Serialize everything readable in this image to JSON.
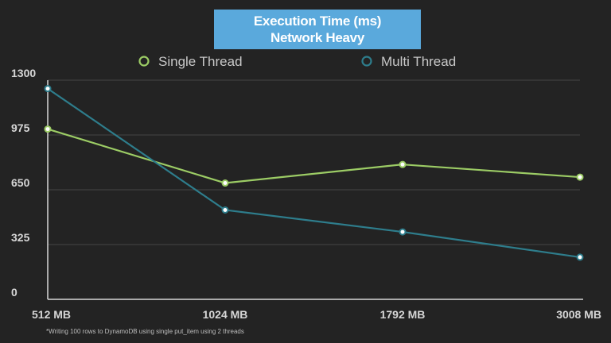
{
  "colors": {
    "background": "#232323",
    "title_bg": "#5aa9dc",
    "single_thread": "#9ccc65",
    "multi_thread": "#2e7d8c",
    "grid": "#444444"
  },
  "footnote": "*Writing 100 rows to DynamoDB using single put_item using 2 threads",
  "chart_data": {
    "type": "line",
    "title_lines": [
      "Execution Time (ms)",
      "Network Heavy"
    ],
    "categories": [
      "512 MB",
      "1024 MB",
      "1792 MB",
      "3008 MB"
    ],
    "series": [
      {
        "name": "Single Thread",
        "values": [
          1010,
          690,
          800,
          725
        ]
      },
      {
        "name": "Multi Thread",
        "values": [
          1250,
          530,
          400,
          250
        ]
      }
    ],
    "yticks": [
      0,
      325,
      650,
      975,
      1300
    ],
    "ylim": [
      0,
      1300
    ],
    "grid": "horizontal",
    "legend": "top"
  }
}
